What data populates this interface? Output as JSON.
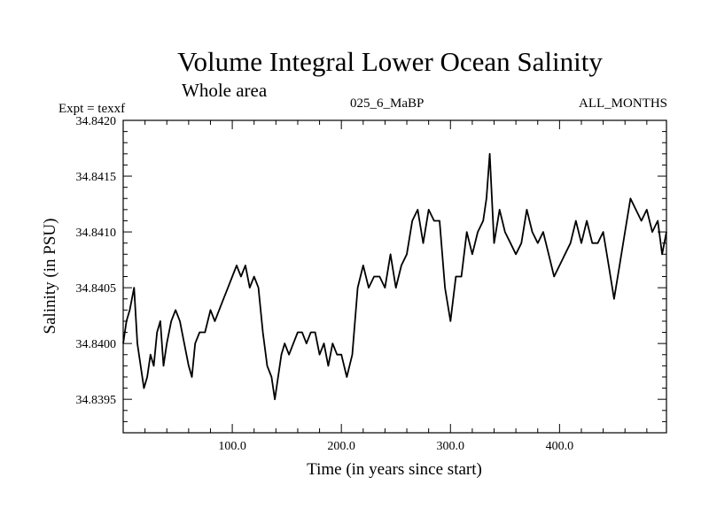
{
  "header": {
    "title": "Volume Integral Lower Ocean Salinity",
    "subtitle": "Whole area",
    "expt": "Expt = texxf",
    "center_label": "025_6_MaBP",
    "right_label": "ALL_MONTHS"
  },
  "chart_data": {
    "type": "line",
    "title": "Volume Integral Lower Ocean Salinity",
    "xlabel": "Time (in years since start)",
    "ylabel": "Salinity (in PSU)",
    "xlim": [
      0,
      498
    ],
    "ylim": [
      34.8392,
      34.842
    ],
    "xticks": [
      100,
      200,
      300,
      400
    ],
    "xtick_labels": [
      "100.0",
      "200.0",
      "300.0",
      "400.0"
    ],
    "yticks": [
      34.8395,
      34.84,
      34.8405,
      34.841,
      34.8415,
      34.842
    ],
    "ytick_labels": [
      "34.8395",
      "34.8400",
      "34.8405",
      "34.8410",
      "34.8415",
      "34.8420"
    ],
    "series": [
      {
        "name": "Salinity",
        "color": "#000000",
        "x": [
          0,
          3,
          6,
          10,
          13,
          16,
          19,
          22,
          25,
          28,
          31,
          34,
          37,
          40,
          44,
          48,
          52,
          56,
          60,
          63,
          66,
          70,
          75,
          80,
          84,
          88,
          92,
          96,
          100,
          104,
          108,
          112,
          116,
          120,
          124,
          128,
          132,
          136,
          139,
          142,
          145,
          148,
          152,
          156,
          160,
          164,
          168,
          172,
          176,
          180,
          184,
          188,
          192,
          196,
          200,
          205,
          210,
          215,
          220,
          225,
          230,
          235,
          240,
          245,
          250,
          255,
          260,
          265,
          270,
          275,
          280,
          285,
          290,
          295,
          300,
          305,
          310,
          315,
          320,
          325,
          330,
          333,
          336,
          340,
          345,
          350,
          355,
          360,
          365,
          370,
          375,
          380,
          385,
          390,
          395,
          400,
          405,
          410,
          415,
          420,
          425,
          430,
          435,
          440,
          445,
          450,
          455,
          460,
          465,
          470,
          475,
          480,
          485,
          490,
          494,
          498
        ],
        "values": [
          34.84,
          34.8402,
          34.8403,
          34.8405,
          34.84,
          34.8398,
          34.8396,
          34.8397,
          34.8399,
          34.8398,
          34.8401,
          34.8402,
          34.8398,
          34.84,
          34.8402,
          34.8403,
          34.8402,
          34.84,
          34.8398,
          34.8397,
          34.84,
          34.8401,
          34.8401,
          34.8403,
          34.8402,
          34.8403,
          34.8404,
          34.8405,
          34.8406,
          34.8407,
          34.8406,
          34.8407,
          34.8405,
          34.8406,
          34.8405,
          34.8401,
          34.8398,
          34.8397,
          34.8395,
          34.8397,
          34.8399,
          34.84,
          34.8399,
          34.84,
          34.8401,
          34.8401,
          34.84,
          34.8401,
          34.8401,
          34.8399,
          34.84,
          34.8398,
          34.84,
          34.8399,
          34.8399,
          34.8397,
          34.8399,
          34.8405,
          34.8407,
          34.8405,
          34.8406,
          34.8406,
          34.8405,
          34.8408,
          34.8405,
          34.8407,
          34.8408,
          34.8411,
          34.8412,
          34.8409,
          34.8412,
          34.8411,
          34.8411,
          34.8405,
          34.8402,
          34.8406,
          34.8406,
          34.841,
          34.8408,
          34.841,
          34.8411,
          34.8413,
          34.8417,
          34.8409,
          34.8412,
          34.841,
          34.8409,
          34.8408,
          34.8409,
          34.8412,
          34.841,
          34.8409,
          34.841,
          34.8408,
          34.8406,
          34.8407,
          34.8408,
          34.8409,
          34.8411,
          34.8409,
          34.8411,
          34.8409,
          34.8409,
          34.841,
          34.8407,
          34.8404,
          34.8407,
          34.841,
          34.8413,
          34.8412,
          34.8411,
          34.8412,
          34.841,
          34.8411,
          34.8408,
          34.841
        ]
      }
    ]
  }
}
